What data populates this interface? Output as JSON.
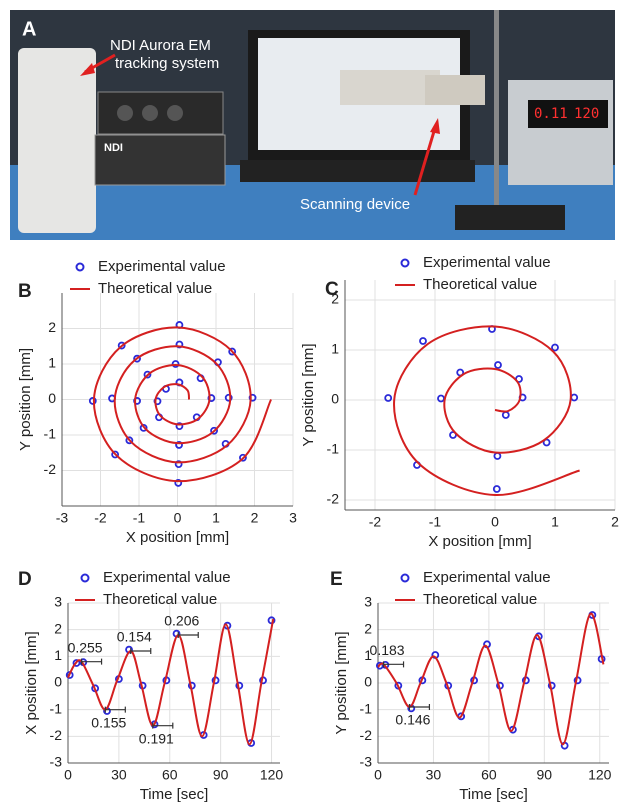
{
  "photo": {
    "panel_label": "A",
    "callouts": [
      {
        "lines": [
          "NDI Aurora EM",
          "tracking system"
        ]
      },
      {
        "lines": [
          "Scanning device"
        ]
      }
    ],
    "device_texts": [
      "NDI",
      "0.11",
      "120"
    ]
  },
  "chart_data": [
    {
      "type": "scatter",
      "panel_label": "B",
      "x_label": "X position [mm]",
      "y_label": "Y position [mm]",
      "xlim": [
        -3,
        3
      ],
      "ylim": [
        -3,
        3
      ],
      "xticks": [
        -3,
        -2,
        -1,
        0,
        1,
        2,
        3
      ],
      "yticks": [
        -2,
        -1,
        0,
        1,
        2
      ],
      "grid": true,
      "series": [
        {
          "name": "Experimental value",
          "color": "#2a2ad8",
          "mode": "markers",
          "x": [
            0.05,
            -0.3,
            -0.52,
            -0.48,
            0.05,
            0.5,
            0.88,
            0.6,
            -0.05,
            -0.78,
            -1.05,
            -0.88,
            0.04,
            0.95,
            1.33,
            1.05,
            0.05,
            -1.05,
            -1.7,
            -1.25,
            0.03,
            1.25,
            1.95,
            1.42,
            0.05,
            -1.45,
            -2.2,
            -1.62,
            0.02,
            1.7
          ],
          "values": [
            0.48,
            0.3,
            -0.05,
            -0.5,
            -0.75,
            -0.5,
            0.04,
            0.6,
            1.0,
            0.7,
            -0.04,
            -0.8,
            -1.28,
            -0.88,
            0.05,
            1.05,
            1.55,
            1.15,
            0.03,
            -1.15,
            -1.82,
            -1.25,
            0.05,
            1.35,
            2.1,
            1.52,
            -0.04,
            -1.55,
            -2.35,
            -1.64
          ]
        },
        {
          "name": "Theoretical value",
          "color": "#d42020",
          "mode": "line",
          "x": [
            0.3,
            0.26,
            0,
            -0.35,
            -0.57,
            -0.45,
            0,
            0.54,
            0.83,
            0.64,
            0,
            -0.73,
            -1.1,
            -0.83,
            0,
            0.92,
            1.37,
            1.01,
            0,
            -1.11,
            -1.63,
            -1.2,
            0,
            1.29,
            1.9,
            1.39,
            0,
            -1.48,
            -2.17,
            -1.58,
            0,
            1.68,
            2.43
          ],
          "values": [
            0,
            0.26,
            0.43,
            0.35,
            0,
            -0.45,
            -0.7,
            -0.54,
            0,
            0.64,
            0.97,
            0.73,
            0,
            -0.83,
            -1.23,
            -0.92,
            0,
            1.01,
            1.5,
            1.11,
            0,
            -1.2,
            -1.77,
            -1.29,
            0,
            1.39,
            2.03,
            1.48,
            0,
            -1.58,
            -2.3,
            -1.68,
            0
          ]
        }
      ]
    },
    {
      "type": "scatter",
      "panel_label": "C",
      "x_label": "X position [mm]",
      "y_label": "Y position [mm]",
      "xlim": [
        -2.5,
        2
      ],
      "ylim": [
        -2.2,
        2.4
      ],
      "xticks": [
        -2,
        -1,
        0,
        1,
        2
      ],
      "yticks": [
        -2,
        -1,
        0,
        1,
        2
      ],
      "grid": true,
      "series": [
        {
          "name": "Experimental value",
          "color": "#2a2ad8",
          "mode": "markers",
          "x": [
            0.18,
            0.46,
            0.4,
            0.05,
            -0.58,
            -0.9,
            -0.7,
            0.04,
            0.86,
            1.32,
            1.0,
            -0.05,
            -1.2,
            -1.78,
            -1.3,
            0.03
          ],
          "values": [
            -0.3,
            0.05,
            0.42,
            0.7,
            0.55,
            0.03,
            -0.7,
            -1.12,
            -0.85,
            0.05,
            1.05,
            1.42,
            1.18,
            0.04,
            -1.3,
            -1.78
          ]
        },
        {
          "name": "Theoretical value",
          "color": "#d42020",
          "mode": "line",
          "x": [
            0,
            0.22,
            0.41,
            0.37,
            0,
            -0.52,
            -0.84,
            -0.66,
            0,
            0.81,
            1.26,
            0.97,
            0,
            -1.12,
            -1.68,
            -1.27,
            0,
            1.41
          ],
          "values": [
            -0.2,
            -0.22,
            0,
            0.37,
            0.62,
            0.52,
            0,
            -0.66,
            -1.05,
            -0.81,
            0,
            0.97,
            1.47,
            1.12,
            0,
            -1.27,
            -1.9,
            -1.41
          ]
        }
      ]
    },
    {
      "type": "line",
      "panel_label": "D",
      "x_label": "Time [sec]",
      "y_label": "X position [mm]",
      "xlim": [
        0,
        125
      ],
      "ylim": [
        -3,
        3
      ],
      "xticks": [
        0,
        30,
        60,
        90,
        120
      ],
      "yticks": [
        -3,
        -2,
        -1,
        0,
        1,
        2,
        3
      ],
      "grid": true,
      "series": [
        {
          "name": "Experimental value",
          "color": "#2a2ad8",
          "mode": "markers",
          "x": [
            1,
            5,
            9,
            16,
            23,
            30,
            36,
            44,
            51,
            58,
            64,
            73,
            80,
            87,
            94,
            101,
            108,
            115,
            120
          ],
          "values": [
            0.3,
            0.75,
            0.78,
            -0.2,
            -1.05,
            0.15,
            1.25,
            -0.1,
            -1.55,
            0.1,
            1.85,
            -0.1,
            -1.95,
            0.1,
            2.15,
            -0.1,
            -2.25,
            0.1,
            2.35
          ]
        },
        {
          "name": "Theoretical value",
          "color": "#d42020",
          "mode": "line",
          "x": [
            0,
            4,
            8,
            15,
            22,
            29,
            37,
            43,
            50,
            57,
            65,
            72,
            79,
            86,
            93,
            100,
            107,
            114,
            121
          ],
          "values": [
            0.2,
            0.7,
            0.8,
            -0.1,
            -1.0,
            0.1,
            1.2,
            0,
            -1.6,
            0,
            1.8,
            0,
            -2.0,
            0,
            2.2,
            0,
            -2.3,
            0,
            2.4
          ]
        }
      ],
      "annotations": [
        {
          "label": "0.255",
          "x": 8,
          "y": 0.8
        },
        {
          "label": "0.155",
          "x": 22,
          "y": -1.0
        },
        {
          "label": "0.154",
          "x": 37,
          "y": 1.2
        },
        {
          "label": "0.191",
          "x": 50,
          "y": -1.6
        },
        {
          "label": "0.206",
          "x": 65,
          "y": 1.8
        }
      ]
    },
    {
      "type": "line",
      "panel_label": "E",
      "x_label": "Time [sec]",
      "y_label": "Y position [mm]",
      "xlim": [
        0,
        125
      ],
      "ylim": [
        -3,
        3
      ],
      "xticks": [
        0,
        30,
        60,
        90,
        120
      ],
      "yticks": [
        -3,
        -2,
        -1,
        0,
        1,
        2,
        3
      ],
      "grid": true,
      "series": [
        {
          "name": "Experimental value",
          "color": "#2a2ad8",
          "mode": "markers",
          "x": [
            1,
            4,
            11,
            18,
            24,
            31,
            38,
            45,
            52,
            59,
            66,
            73,
            80,
            87,
            94,
            101,
            108,
            116,
            121
          ],
          "values": [
            0.65,
            0.68,
            -0.1,
            -0.95,
            0.1,
            1.05,
            -0.1,
            -1.25,
            0.1,
            1.45,
            -0.1,
            -1.75,
            0.1,
            1.75,
            -0.1,
            -2.35,
            0.1,
            2.55,
            0.9
          ]
        },
        {
          "name": "Theoretical value",
          "color": "#d42020",
          "mode": "line",
          "x": [
            0,
            3,
            10,
            17,
            23,
            30,
            37,
            44,
            51,
            58,
            65,
            72,
            79,
            86,
            93,
            100,
            107,
            115,
            122
          ],
          "values": [
            0.6,
            0.7,
            0,
            -0.9,
            0,
            1.0,
            0,
            -1.3,
            0,
            1.4,
            0,
            -1.8,
            0,
            1.8,
            0,
            -2.3,
            0,
            2.6,
            0.7
          ]
        }
      ],
      "annotations": [
        {
          "label": "0.183",
          "x": 3,
          "y": 0.7
        },
        {
          "label": "0.146",
          "x": 17,
          "y": -0.9
        }
      ]
    }
  ]
}
